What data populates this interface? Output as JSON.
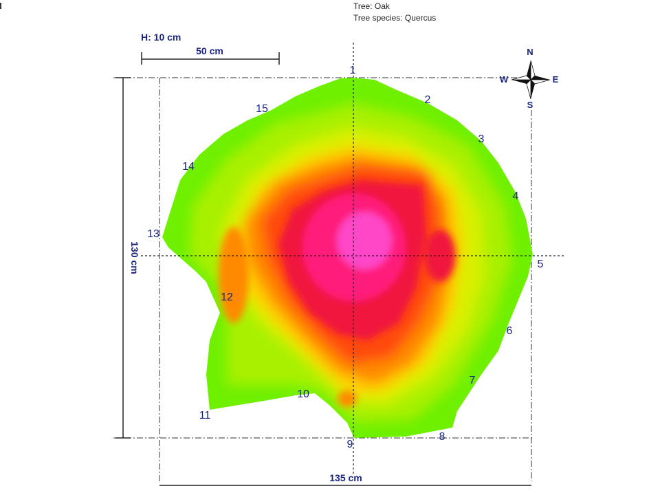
{
  "header": {
    "tree": "Tree: Oak",
    "species": "Tree species: Quercus"
  },
  "scale": {
    "height": "H: 10 cm",
    "bar": "50 cm"
  },
  "dimensions": {
    "width": "135 cm",
    "height": "130 cm"
  },
  "compass": {
    "north": "N",
    "south": "S",
    "east": "E",
    "west": "W"
  },
  "points": [
    "1",
    "2",
    "3",
    "4",
    "5",
    "6",
    "7",
    "8",
    "9",
    "10",
    "11",
    "12",
    "13",
    "14",
    "15"
  ],
  "colors": {
    "outer": "#6ef000",
    "green": "#a8f000",
    "yellow_green": "#d8f000",
    "yellow": "#ffd000",
    "orange": "#ff8a00",
    "red_orange": "#ff4a10",
    "red": "#f0143c",
    "magenta": "#ff1e7a",
    "pink": "#ff46c8",
    "ink": "#1a237e"
  }
}
